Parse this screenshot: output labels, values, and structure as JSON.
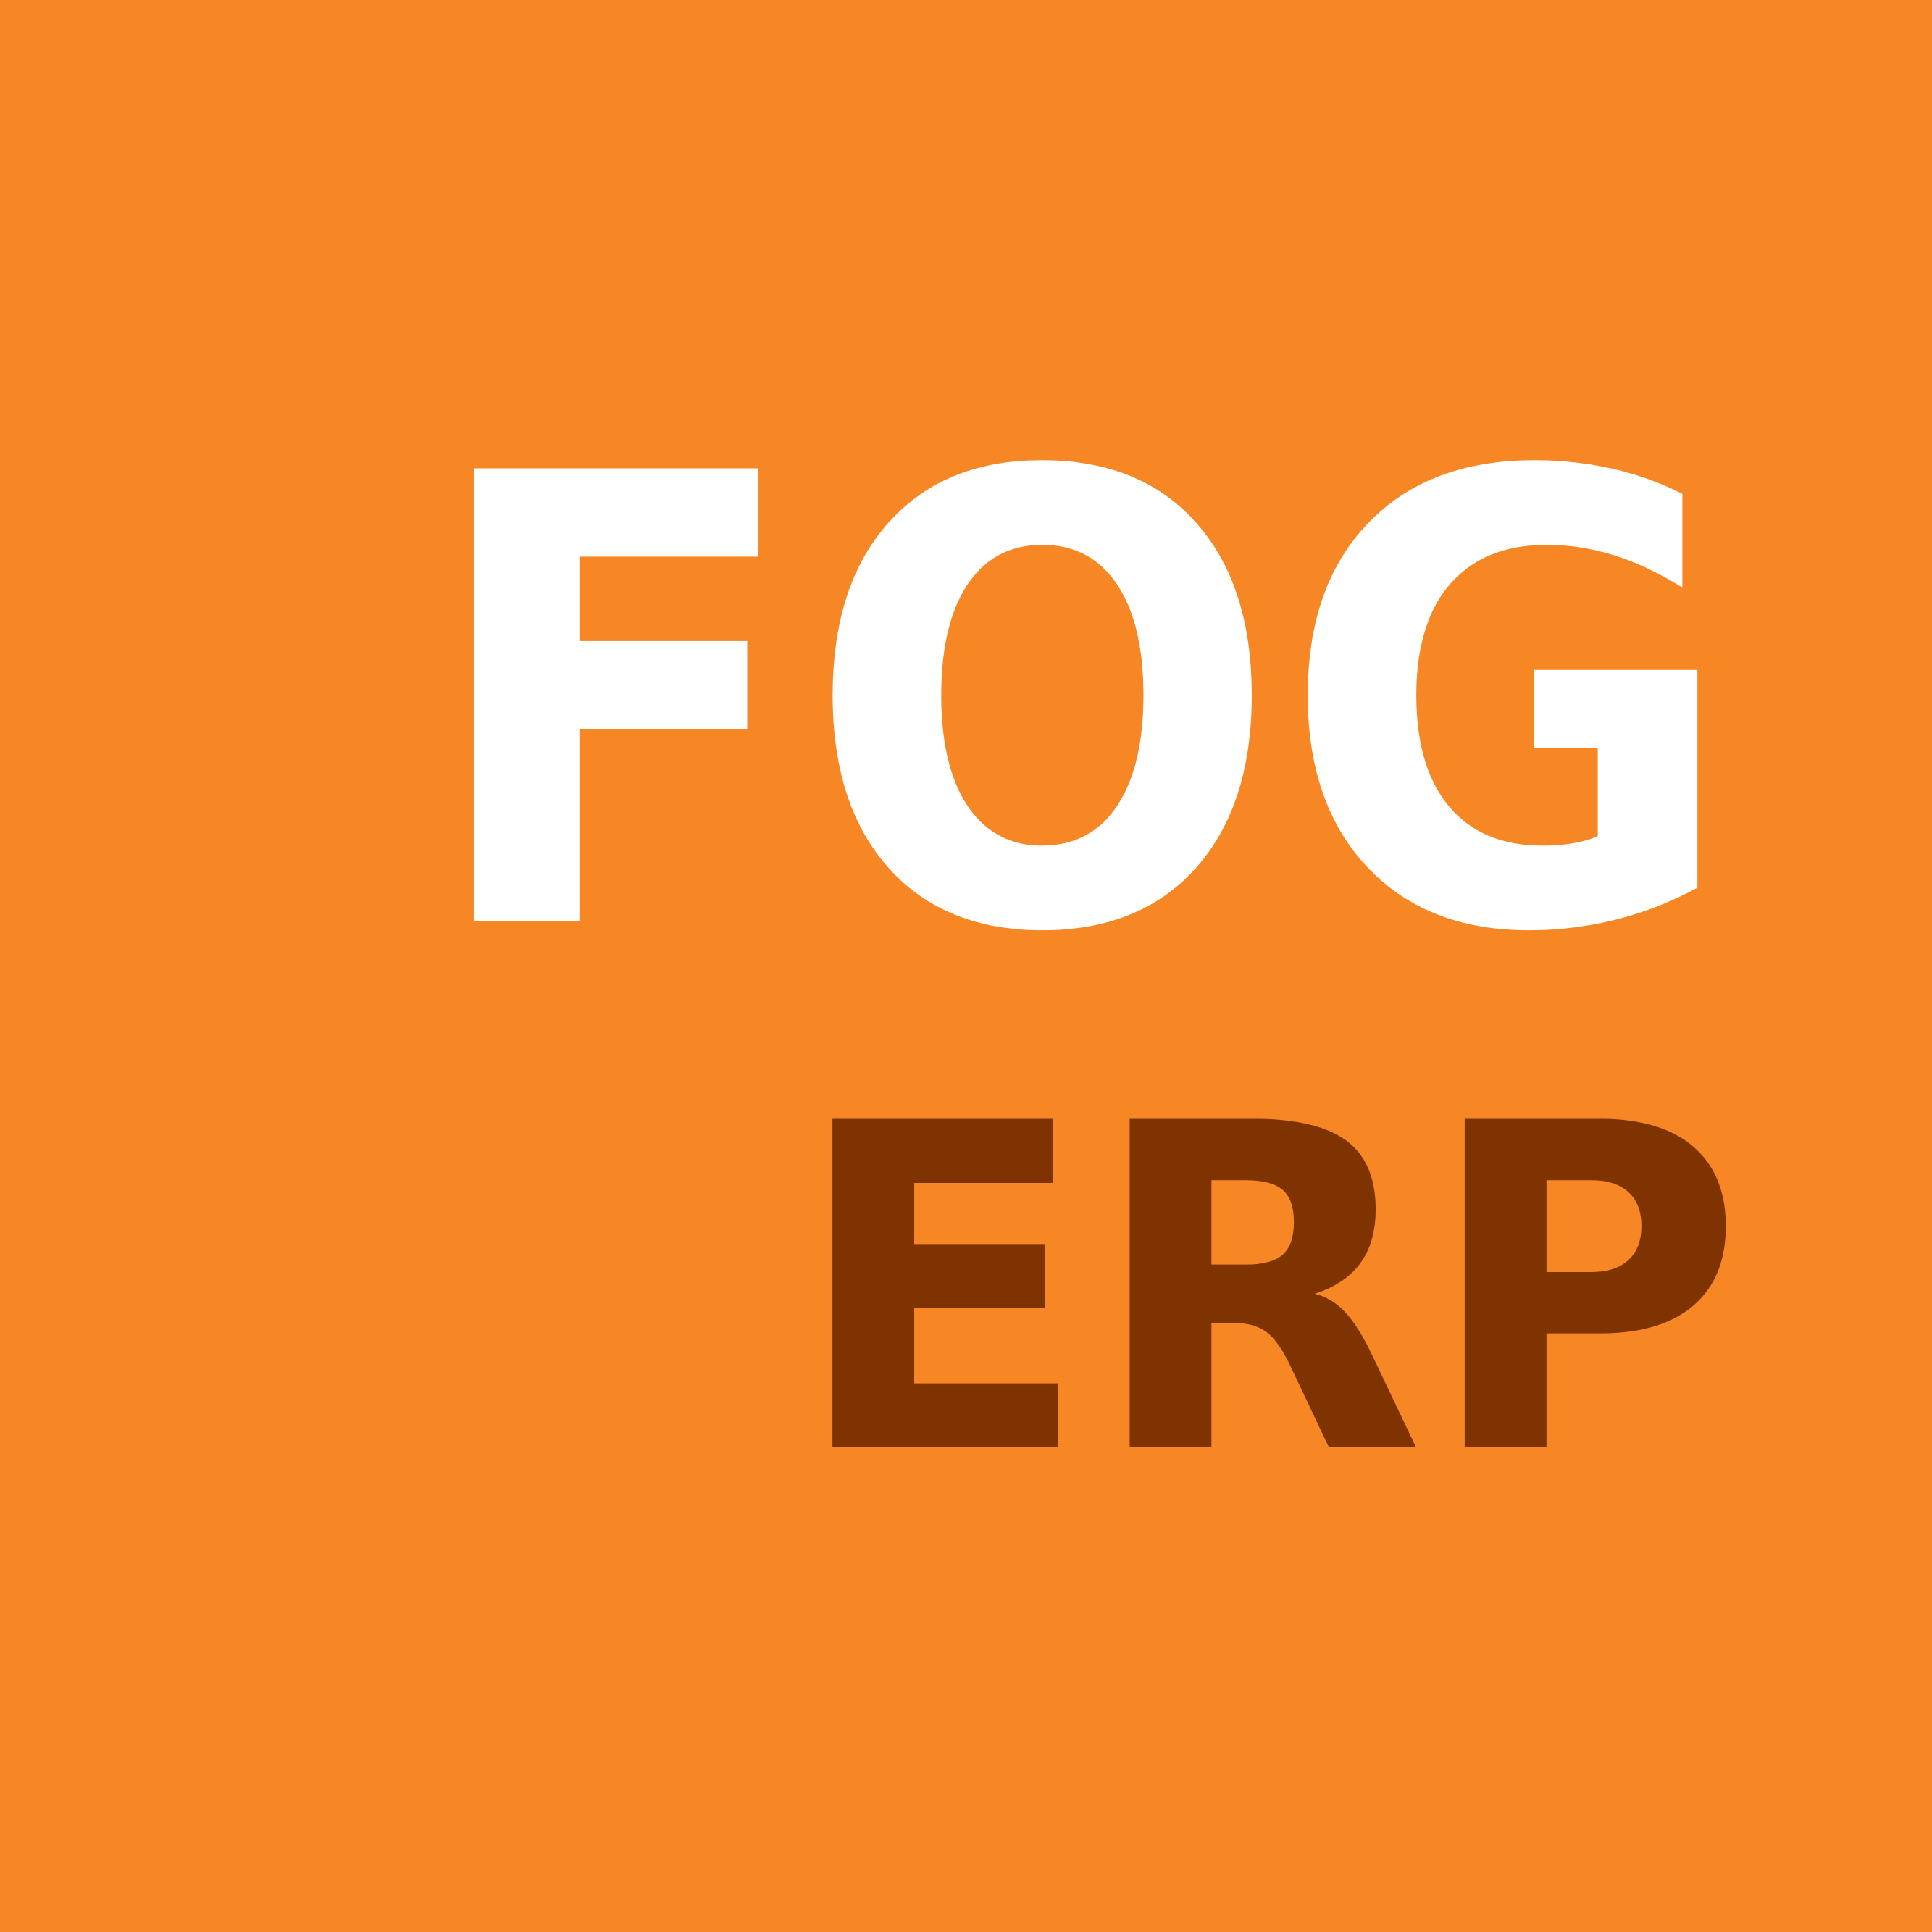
{
  "logo": {
    "primary_text": "FOG",
    "secondary_text": "ERP",
    "colors": {
      "background": "#f68724",
      "primary_text": "#ffffff",
      "secondary_text": "#7f3300"
    }
  }
}
